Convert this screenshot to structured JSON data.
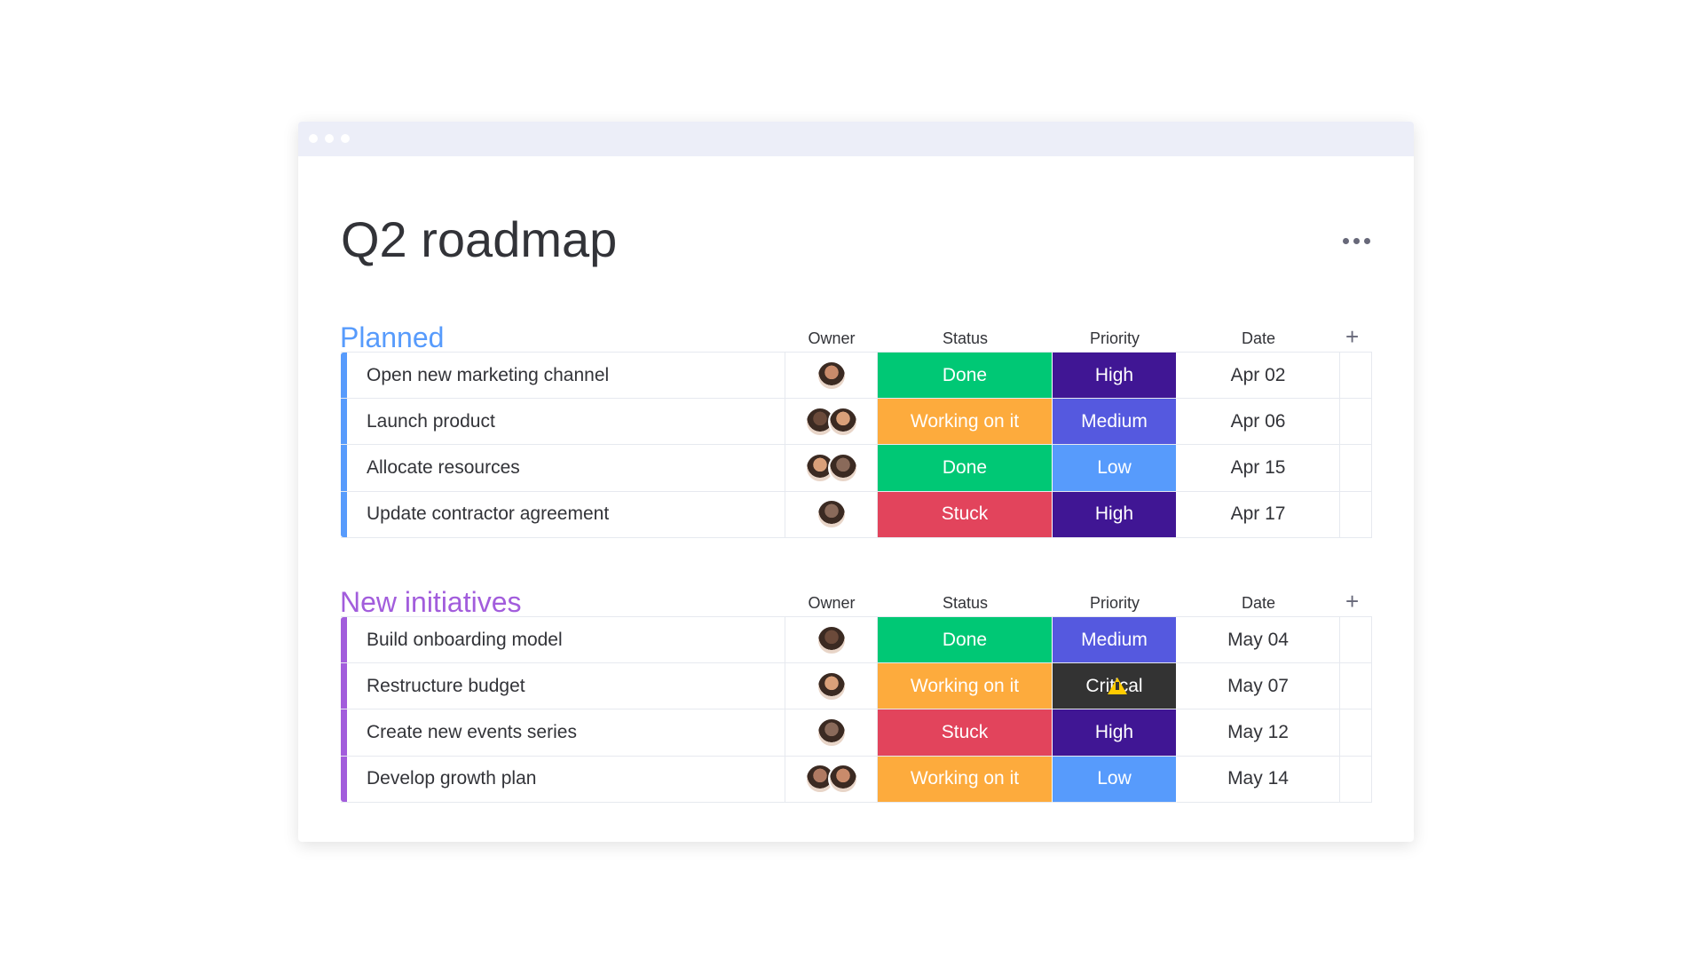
{
  "header": {
    "title": "Q2 roadmap"
  },
  "groups": [
    {
      "name": "Planned",
      "color": "#579bfc",
      "columns": [
        "Owner",
        "Status",
        "Priority",
        "Date"
      ],
      "rows": [
        {
          "task": "Open new marketing channel",
          "status": {
            "label": "Done",
            "color": "#00c875"
          },
          "priority": {
            "label": "High",
            "color": "#401694"
          },
          "date": "Apr 02"
        },
        {
          "task": "Launch product",
          "status": {
            "label": "Working on it",
            "color": "#fdab3d"
          },
          "priority": {
            "label": "Medium",
            "color": "#5559df"
          },
          "date": "Apr 06"
        },
        {
          "task": "Allocate resources",
          "status": {
            "label": "Done",
            "color": "#00c875"
          },
          "priority": {
            "label": "Low",
            "color": "#579bfc"
          },
          "date": "Apr 15"
        },
        {
          "task": "Update contractor agreement",
          "status": {
            "label": "Stuck",
            "color": "#e2445c"
          },
          "priority": {
            "label": "High",
            "color": "#401694"
          },
          "date": "Apr 17"
        }
      ]
    },
    {
      "name": "New initiatives",
      "color": "#a25ddc",
      "columns": [
        "Owner",
        "Status",
        "Priority",
        "Date"
      ],
      "rows": [
        {
          "task": "Build onboarding model",
          "status": {
            "label": "Done",
            "color": "#00c875"
          },
          "priority": {
            "label": "Medium",
            "color": "#5559df"
          },
          "date": "May 04"
        },
        {
          "task": "Restructure budget",
          "status": {
            "label": "Working on it",
            "color": "#fdab3d"
          },
          "priority": {
            "label": "Critical",
            "color": "#333333",
            "icon": "warning"
          },
          "date": "May 07"
        },
        {
          "task": "Create new events series",
          "status": {
            "label": "Stuck",
            "color": "#e2445c"
          },
          "priority": {
            "label": "High",
            "color": "#401694"
          },
          "date": "May 12"
        },
        {
          "task": "Develop growth plan",
          "status": {
            "label": "Working on it",
            "color": "#fdab3d"
          },
          "priority": {
            "label": "Low",
            "color": "#579bfc"
          },
          "date": "May 14"
        }
      ]
    }
  ]
}
